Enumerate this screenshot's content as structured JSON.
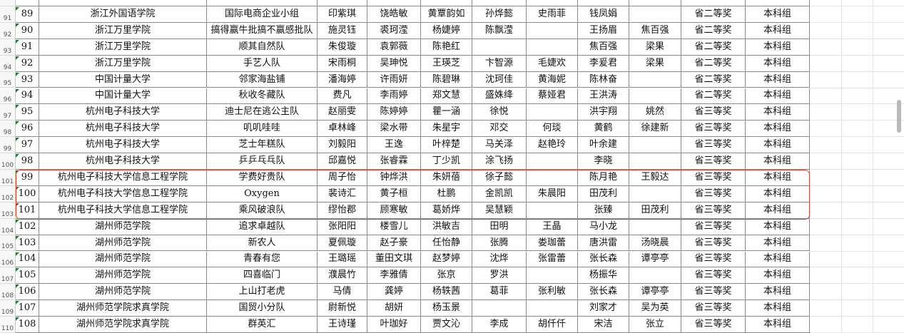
{
  "table": {
    "row_headers": [
      91,
      92,
      93,
      94,
      95,
      96,
      97,
      98,
      99,
      100,
      101,
      102,
      103,
      104,
      105,
      106,
      107,
      108,
      109,
      110
    ],
    "rows": [
      [
        89,
        "浙江外国语学院",
        "国际电商企业小组",
        "印紫琪",
        "饶皓敏",
        "黄覃韵如",
        "孙烨懿",
        "史雨菲",
        "钱凤娟",
        null,
        "省二等奖",
        "本科组"
      ],
      [
        90,
        "浙江万里学院",
        "搞得赢牛批搞不赢感批队",
        "施灵钰",
        "裘珂滢",
        "杨婕婷",
        "陈飘滢",
        null,
        "王扬眉",
        "焦百强",
        "省二等奖",
        "本科组"
      ],
      [
        91,
        "浙江万里学院",
        "顺其自然队",
        "朱俊璇",
        "袁郭薇",
        "陈艳红",
        null,
        null,
        "焦百强",
        "梁果",
        "省二等奖",
        "本科组"
      ],
      [
        92,
        "浙江万里学院",
        "手艺人队",
        "宋雨桐",
        "吴珅悦",
        "王瑛芝",
        "卞智源",
        "毛婕欢",
        "李爰君",
        "梁果",
        "省二等奖",
        "本科组"
      ],
      [
        93,
        "中国计量大学",
        "邻家海盐铺",
        "潘海婷",
        "许雨妍",
        "陈碧琳",
        "沈珂佳",
        "黄海妮",
        "陈林奋",
        null,
        "省二等奖",
        "本科组"
      ],
      [
        94,
        "中国计量大学",
        "秋收冬藏队",
        "费凡",
        "李雨婷",
        "郑文慧",
        "盛姝绛",
        "蔡娅君",
        "王洪涛",
        null,
        "省二等奖",
        "本科组"
      ],
      [
        95,
        "杭州电子科技大学",
        "迪士尼在逃公主队",
        "赵丽雯",
        "陈婷婷",
        "瞿一涵",
        "徐悦",
        null,
        "洪宇翔",
        "姚然",
        "省三等奖",
        "本科组"
      ],
      [
        96,
        "杭州电子科技大学",
        "叽叽哇哇",
        "卓林峰",
        "梁水带",
        "朱星宇",
        "邓交",
        "何琰",
        "黄鹤",
        "徐建新",
        "省三等奖",
        "本科组"
      ],
      [
        97,
        "杭州电子科技大学",
        "芝士年糕队",
        "刘毅阳",
        "王逸",
        "叶梓楚",
        "马关泽",
        "赵艳玲",
        "叶余建",
        null,
        "省三等奖",
        "本科组"
      ],
      [
        98,
        "杭州电子科技大学",
        "乒乒乓乓队",
        "邱嘉悦",
        "张睿霖",
        "丁少凯",
        "涂飞扬",
        null,
        "李晓",
        null,
        "省三等奖",
        "本科组"
      ],
      [
        99,
        "杭州电子科技大学信息工程学院",
        "学费好贵队",
        "周子怡",
        "钟烨洪",
        "朱妍蓓",
        "徐子懿",
        null,
        "陈月艳",
        "王毅达",
        "省三等奖",
        "本科组"
      ],
      [
        100,
        "杭州电子科技大学信息工程学院",
        "Oxygen",
        "裴诗汇",
        "黄子桓",
        "杜鹏",
        "金凯凯",
        "朱晨阳",
        "田茂利",
        null,
        "省三等奖",
        "本科组"
      ],
      [
        101,
        "杭州电子科技大学信息工程学院",
        "乘风破浪队",
        "缪怡郡",
        "顾寒敏",
        "葛娇烨",
        "吴慧颖",
        null,
        "张臻",
        "田茂利",
        "省三等奖",
        "本科组"
      ],
      [
        102,
        "湖州师范学院",
        "追求卓越队",
        "张阳阳",
        "楼雪儿",
        "洪敏吉",
        "田明",
        "王晶",
        "马小龙",
        null,
        "省三等奖",
        "本科组"
      ],
      [
        103,
        "湖州师范学院",
        "新农人",
        "夏佩璇",
        "赵子豪",
        "任怡静",
        "张腾",
        "娄珈蕾",
        "唐洪雷",
        "汤晓晨",
        "省三等奖",
        "本科组"
      ],
      [
        104,
        "湖州师范学院",
        "青春有您",
        "王璐瑶",
        "董田文琪",
        "赵梦婷",
        "沈烨",
        "张雷蕾",
        "张长森",
        "谭亭亭",
        "省三等奖",
        "本科组"
      ],
      [
        105,
        "湖州师范学院",
        "四喜临门",
        "濮晨竹",
        "李雅倩",
        "张京",
        "罗洪",
        null,
        "杨振华",
        null,
        "省三等奖",
        "本科组"
      ],
      [
        106,
        "湖州师范学院",
        "上山打老虎",
        "马倩",
        "龚婷",
        "杨轶茜",
        "葛菲",
        "张利敏",
        "张长森",
        "谭亭亭",
        "省三等奖",
        "本科组"
      ],
      [
        107,
        "湖州师范学院求真学院",
        "国贸小分队",
        "尉新悦",
        "胡妍",
        "杨玉景",
        null,
        null,
        "刘家才",
        "吴为英",
        "省三等奖",
        "本科组"
      ],
      [
        108,
        "湖州师范学院求真学院",
        "群英汇",
        "王诗瑾",
        "叶珈好",
        "贾文沁",
        "李成",
        "胡仟仟",
        "宋洁",
        "张立",
        "省三等奖",
        "本科组"
      ]
    ]
  }
}
